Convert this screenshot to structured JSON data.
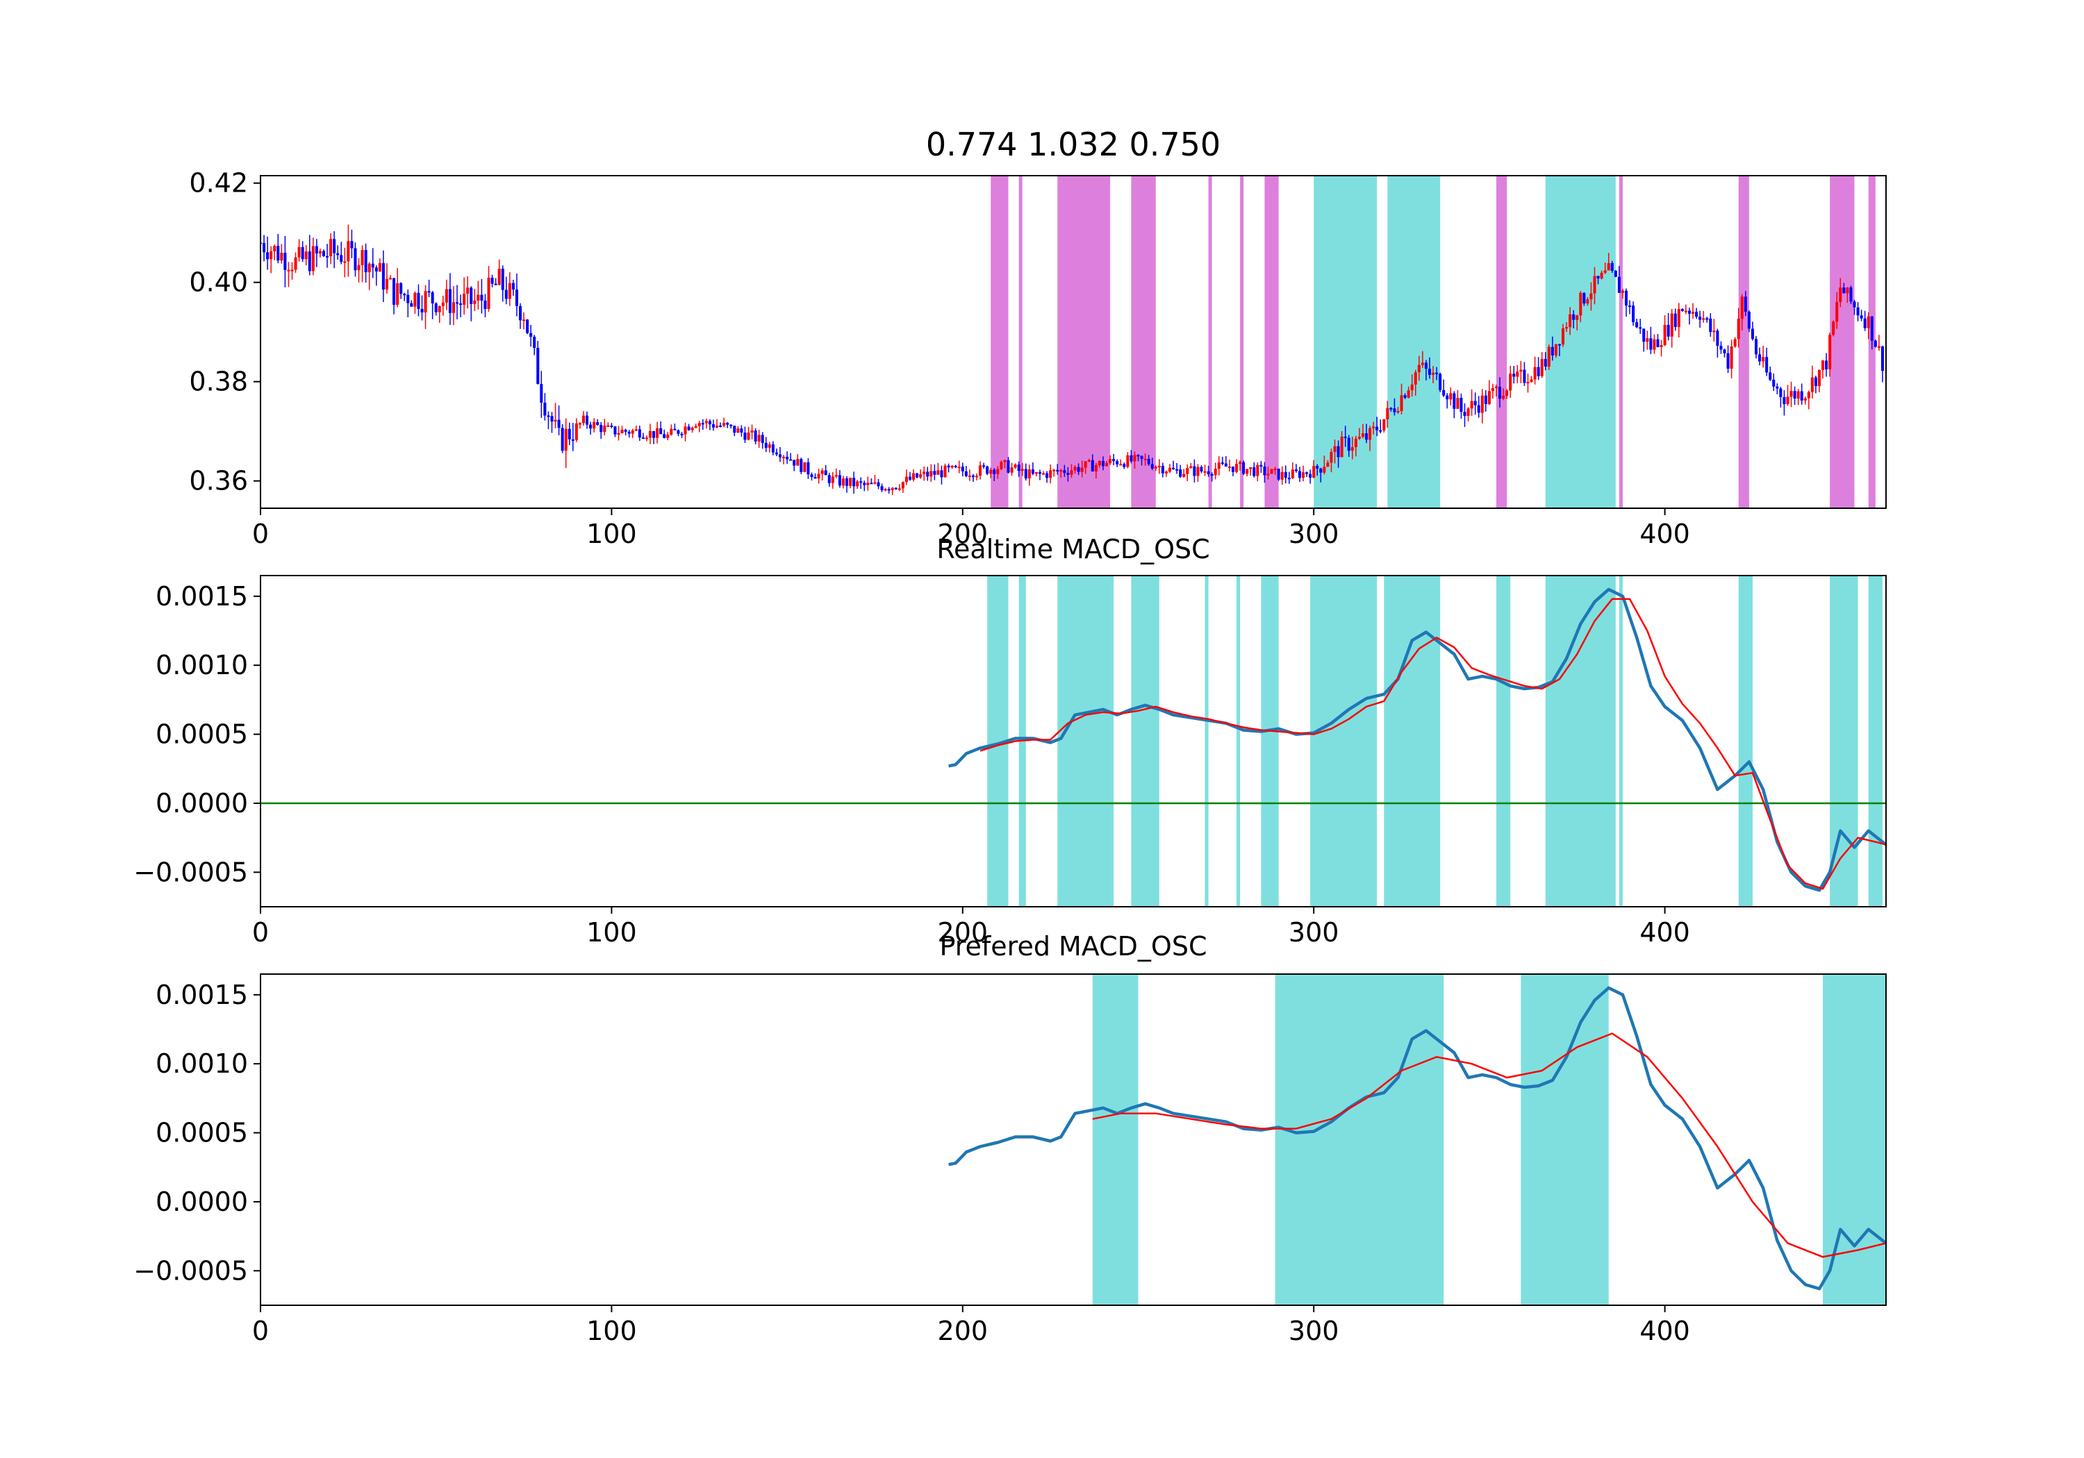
{
  "chart_data": [
    {
      "type": "candlestick",
      "title": "0.774 1.032 0.750",
      "xlim": [
        0,
        463
      ],
      "ylim": [
        0.3545,
        0.4215
      ],
      "xticks": [
        0,
        100,
        200,
        300,
        400
      ],
      "yticks": [
        0.36,
        0.38,
        0.4,
        0.42
      ],
      "ytick_labels": [
        "0.36",
        "0.38",
        "0.40",
        "0.42"
      ],
      "colors": {
        "up": "#ff0000",
        "down": "#0000ff",
        "sell_span": "#dd80dd",
        "buy_span": "#7fdfdf"
      },
      "spans": [
        {
          "from": 208,
          "to": 213,
          "kind": "sell_span"
        },
        {
          "from": 216,
          "to": 217,
          "kind": "sell_span"
        },
        {
          "from": 227,
          "to": 242,
          "kind": "sell_span"
        },
        {
          "from": 248,
          "to": 255,
          "kind": "sell_span"
        },
        {
          "from": 270,
          "to": 271,
          "kind": "sell_span"
        },
        {
          "from": 279,
          "to": 280,
          "kind": "sell_span"
        },
        {
          "from": 286,
          "to": 290,
          "kind": "sell_span"
        },
        {
          "from": 300,
          "to": 318,
          "kind": "buy_span"
        },
        {
          "from": 321,
          "to": 336,
          "kind": "buy_span"
        },
        {
          "from": 352,
          "to": 355,
          "kind": "sell_span"
        },
        {
          "from": 366,
          "to": 386,
          "kind": "buy_span"
        },
        {
          "from": 387,
          "to": 388,
          "kind": "sell_span"
        },
        {
          "from": 421,
          "to": 424,
          "kind": "sell_span"
        },
        {
          "from": 447,
          "to": 454,
          "kind": "sell_span"
        },
        {
          "from": 458,
          "to": 460,
          "kind": "sell_span"
        }
      ],
      "price_path": [
        [
          0,
          0.408
        ],
        [
          10,
          0.404
        ],
        [
          20,
          0.406
        ],
        [
          30,
          0.405
        ],
        [
          38,
          0.398
        ],
        [
          45,
          0.397
        ],
        [
          55,
          0.396
        ],
        [
          62,
          0.396
        ],
        [
          68,
          0.4
        ],
        [
          75,
          0.394
        ],
        [
          80,
          0.378
        ],
        [
          85,
          0.368
        ],
        [
          92,
          0.372
        ],
        [
          100,
          0.37
        ],
        [
          108,
          0.37
        ],
        [
          116,
          0.369
        ],
        [
          124,
          0.372
        ],
        [
          132,
          0.371
        ],
        [
          140,
          0.369
        ],
        [
          148,
          0.366
        ],
        [
          156,
          0.362
        ],
        [
          164,
          0.36
        ],
        [
          172,
          0.359
        ],
        [
          180,
          0.359
        ],
        [
          188,
          0.361
        ],
        [
          196,
          0.362
        ],
        [
          204,
          0.362
        ],
        [
          212,
          0.363
        ],
        [
          220,
          0.361
        ],
        [
          228,
          0.362
        ],
        [
          236,
          0.363
        ],
        [
          244,
          0.364
        ],
        [
          252,
          0.364
        ],
        [
          260,
          0.362
        ],
        [
          268,
          0.362
        ],
        [
          276,
          0.363
        ],
        [
          284,
          0.362
        ],
        [
          292,
          0.361
        ],
        [
          300,
          0.362
        ],
        [
          308,
          0.367
        ],
        [
          316,
          0.369
        ],
        [
          324,
          0.376
        ],
        [
          330,
          0.383
        ],
        [
          336,
          0.38
        ],
        [
          342,
          0.374
        ],
        [
          348,
          0.376
        ],
        [
          354,
          0.379
        ],
        [
          360,
          0.381
        ],
        [
          366,
          0.384
        ],
        [
          372,
          0.392
        ],
        [
          378,
          0.398
        ],
        [
          384,
          0.402
        ],
        [
          388,
          0.398
        ],
        [
          392,
          0.391
        ],
        [
          396,
          0.387
        ],
        [
          400,
          0.39
        ],
        [
          405,
          0.395
        ],
        [
          410,
          0.394
        ],
        [
          414,
          0.389
        ],
        [
          418,
          0.384
        ],
        [
          422,
          0.396
        ],
        [
          426,
          0.386
        ],
        [
          430,
          0.38
        ],
        [
          434,
          0.377
        ],
        [
          440,
          0.378
        ],
        [
          446,
          0.384
        ],
        [
          450,
          0.399
        ],
        [
          454,
          0.395
        ],
        [
          458,
          0.392
        ],
        [
          463,
          0.382
        ]
      ]
    },
    {
      "type": "line",
      "title": "Realtime MACD_OSC",
      "xlim": [
        0,
        463
      ],
      "ylim": [
        -0.00075,
        0.00165
      ],
      "xticks": [
        0,
        100,
        200,
        300,
        400
      ],
      "yticks": [
        -0.0005,
        0.0,
        0.0005,
        0.001,
        0.0015
      ],
      "ytick_labels": [
        "−0.0005",
        "0.0000",
        "0.0005",
        "0.0010",
        "0.0015"
      ],
      "hline": 0,
      "colors": {
        "osc": "#1f77b4",
        "signal": "#ff0000",
        "zero": "#008000",
        "span": "#7fdfdf"
      },
      "spans": [
        [
          207,
          213
        ],
        [
          216,
          218
        ],
        [
          227,
          243
        ],
        [
          248,
          256
        ],
        [
          269,
          270
        ],
        [
          278,
          279
        ],
        [
          285,
          290
        ],
        [
          299,
          318
        ],
        [
          320,
          336
        ],
        [
          352,
          356
        ],
        [
          366,
          386
        ],
        [
          387,
          388
        ],
        [
          421,
          425
        ],
        [
          447,
          455
        ],
        [
          458,
          462
        ]
      ],
      "series": [
        {
          "key": "osc",
          "x": [
            196,
            198,
            201,
            205,
            210,
            215,
            220,
            225,
            228,
            232,
            236,
            240,
            244,
            248,
            252,
            256,
            260,
            265,
            270,
            275,
            280,
            285,
            290,
            295,
            300,
            305,
            310,
            315,
            320,
            324,
            328,
            332,
            336,
            340,
            344,
            348,
            352,
            356,
            360,
            364,
            368,
            372,
            376,
            380,
            384,
            388,
            392,
            396,
            400,
            405,
            410,
            415,
            420,
            424,
            428,
            432,
            436,
            440,
            444,
            447,
            450,
            454,
            458,
            463
          ],
          "y": [
            0.00027,
            0.00028,
            0.00036,
            0.0004,
            0.00043,
            0.00047,
            0.00047,
            0.00044,
            0.00047,
            0.00064,
            0.00066,
            0.00068,
            0.00064,
            0.00068,
            0.00071,
            0.00068,
            0.00064,
            0.00062,
            0.0006,
            0.00058,
            0.00053,
            0.00052,
            0.00054,
            0.0005,
            0.00051,
            0.00058,
            0.00068,
            0.00076,
            0.00079,
            0.0009,
            0.00118,
            0.00124,
            0.00116,
            0.00108,
            0.0009,
            0.00092,
            0.0009,
            0.00085,
            0.00083,
            0.00084,
            0.00088,
            0.00105,
            0.0013,
            0.00146,
            0.00155,
            0.0015,
            0.0012,
            0.00085,
            0.0007,
            0.0006,
            0.0004,
            0.0001,
            0.0002,
            0.0003,
            0.0001,
            -0.00028,
            -0.0005,
            -0.0006,
            -0.00063,
            -0.0005,
            -0.0002,
            -0.00032,
            -0.0002,
            -0.0003
          ]
        },
        {
          "key": "signal",
          "x": [
            205,
            210,
            215,
            220,
            225,
            230,
            235,
            240,
            245,
            250,
            255,
            260,
            265,
            270,
            275,
            280,
            285,
            290,
            295,
            300,
            305,
            310,
            315,
            320,
            325,
            330,
            335,
            340,
            345,
            350,
            355,
            360,
            365,
            370,
            375,
            380,
            385,
            390,
            395,
            400,
            405,
            410,
            415,
            420,
            425,
            430,
            435,
            440,
            445,
            450,
            455,
            460,
            463
          ],
          "y": [
            0.00038,
            0.00042,
            0.00045,
            0.00046,
            0.00046,
            0.00058,
            0.00064,
            0.00066,
            0.00065,
            0.00067,
            0.0007,
            0.00066,
            0.00063,
            0.00061,
            0.00058,
            0.00055,
            0.00053,
            0.00052,
            0.00051,
            0.0005,
            0.00054,
            0.00061,
            0.0007,
            0.00074,
            0.00095,
            0.00112,
            0.0012,
            0.00113,
            0.00098,
            0.00093,
            0.00089,
            0.00085,
            0.00083,
            0.0009,
            0.00108,
            0.00132,
            0.00148,
            0.00148,
            0.00125,
            0.00092,
            0.00072,
            0.00058,
            0.0004,
            0.0002,
            0.00022,
            -0.00012,
            -0.00045,
            -0.00058,
            -0.00062,
            -0.0004,
            -0.00025,
            -0.00028,
            -0.0003
          ]
        }
      ]
    },
    {
      "type": "line",
      "title": "Prefered MACD_OSC",
      "xlim": [
        0,
        463
      ],
      "ylim": [
        -0.00075,
        0.00165
      ],
      "xticks": [
        0,
        100,
        200,
        300,
        400
      ],
      "yticks": [
        -0.0005,
        0.0,
        0.0005,
        0.001,
        0.0015
      ],
      "ytick_labels": [
        "−0.0005",
        "0.0000",
        "0.0005",
        "0.0010",
        "0.0015"
      ],
      "colors": {
        "osc": "#1f77b4",
        "signal": "#ff0000",
        "span": "#7fdfdf"
      },
      "spans": [
        [
          237,
          250
        ],
        [
          289,
          337
        ],
        [
          359,
          384
        ],
        [
          445,
          463
        ]
      ],
      "series": [
        {
          "key": "osc",
          "x": [
            196,
            198,
            201,
            205,
            210,
            215,
            220,
            225,
            228,
            232,
            236,
            240,
            244,
            248,
            252,
            256,
            260,
            265,
            270,
            275,
            280,
            285,
            290,
            295,
            300,
            305,
            310,
            315,
            320,
            324,
            328,
            332,
            336,
            340,
            344,
            348,
            352,
            356,
            360,
            364,
            368,
            372,
            376,
            380,
            384,
            388,
            392,
            396,
            400,
            405,
            410,
            415,
            420,
            424,
            428,
            432,
            436,
            440,
            444,
            447,
            450,
            454,
            458,
            463
          ],
          "y": [
            0.00027,
            0.00028,
            0.00036,
            0.0004,
            0.00043,
            0.00047,
            0.00047,
            0.00044,
            0.00047,
            0.00064,
            0.00066,
            0.00068,
            0.00064,
            0.00068,
            0.00071,
            0.00068,
            0.00064,
            0.00062,
            0.0006,
            0.00058,
            0.00053,
            0.00052,
            0.00054,
            0.0005,
            0.00051,
            0.00058,
            0.00068,
            0.00076,
            0.00079,
            0.0009,
            0.00118,
            0.00124,
            0.00116,
            0.00108,
            0.0009,
            0.00092,
            0.0009,
            0.00085,
            0.00083,
            0.00084,
            0.00088,
            0.00105,
            0.0013,
            0.00146,
            0.00155,
            0.0015,
            0.0012,
            0.00085,
            0.0007,
            0.0006,
            0.0004,
            0.0001,
            0.0002,
            0.0003,
            0.0001,
            -0.00028,
            -0.0005,
            -0.0006,
            -0.00063,
            -0.0005,
            -0.0002,
            -0.00032,
            -0.0002,
            -0.0003
          ]
        },
        {
          "key": "signal",
          "x": [
            237,
            245,
            255,
            265,
            275,
            285,
            295,
            305,
            315,
            325,
            335,
            345,
            355,
            365,
            375,
            385,
            395,
            405,
            415,
            425,
            435,
            445,
            455,
            463
          ],
          "y": [
            0.0006,
            0.00064,
            0.00064,
            0.0006,
            0.00056,
            0.00053,
            0.00053,
            0.0006,
            0.00075,
            0.00095,
            0.00105,
            0.001,
            0.0009,
            0.00095,
            0.00112,
            0.00122,
            0.00105,
            0.00075,
            0.0004,
            0.0,
            -0.0003,
            -0.0004,
            -0.00035,
            -0.0003
          ]
        }
      ]
    }
  ]
}
